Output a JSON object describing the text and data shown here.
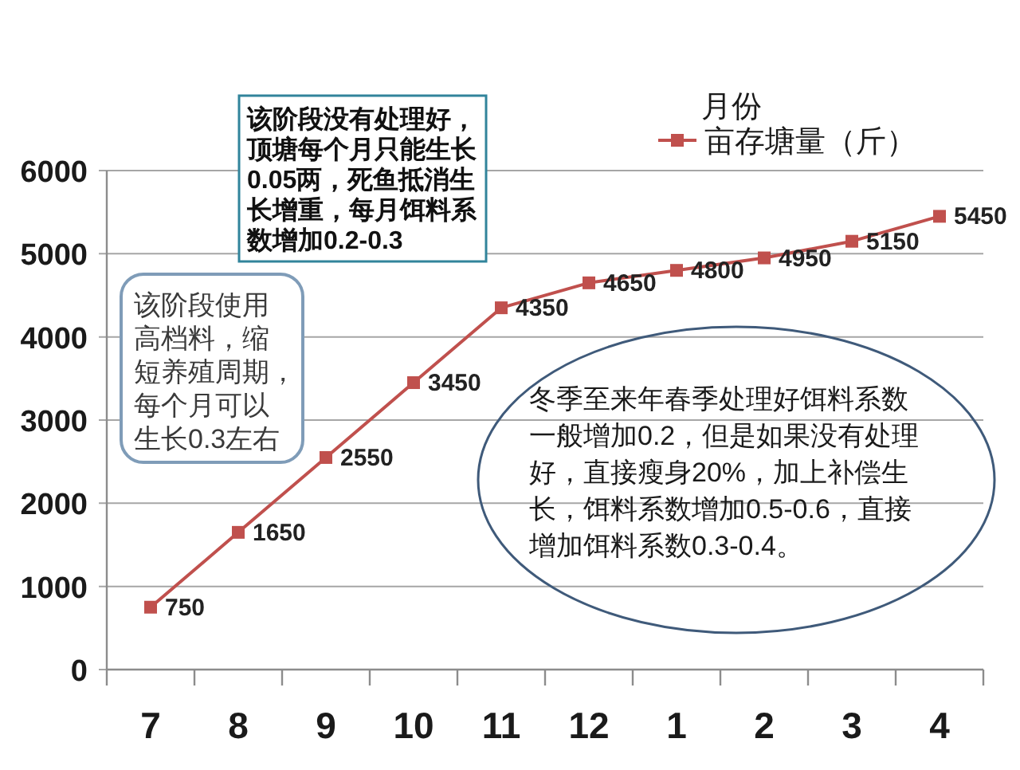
{
  "chart_data": {
    "type": "line",
    "categories": [
      "7",
      "8",
      "9",
      "10",
      "11",
      "12",
      "1",
      "2",
      "3",
      "4"
    ],
    "series": [
      {
        "name": "亩存塘量（斤）",
        "color": "#c0504d",
        "values": [
          750,
          1650,
          2550,
          3450,
          4350,
          4650,
          4800,
          4950,
          5150,
          5450
        ]
      }
    ],
    "legend_title": "月份",
    "legend": "top right",
    "ylim": [
      0,
      6000
    ],
    "yticks": [
      0,
      1000,
      2000,
      3000,
      4000,
      5000,
      6000
    ],
    "grid": "y",
    "marker": "square",
    "data_labels": true,
    "annotations": [
      "该阶段没有处理好，顶塘每个月只能生长0.05两，死鱼抵消生长增重，每月饵料系数增加0.2-0.3",
      "该阶段使用高档料，缩短养殖周期，每个月可以生长0.3左右",
      "冬季至来年春季处理好饵料系数一般增加0.2，但是如果没有处理好，直接瘦身20%，加上补偿生长，饵料系数增加0.5-0.6，直接增加饵料系数0.3-0.4。"
    ]
  }
}
